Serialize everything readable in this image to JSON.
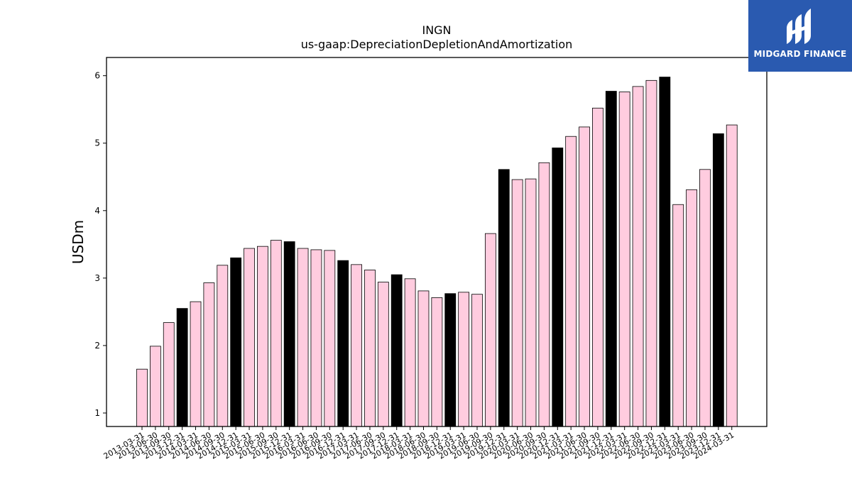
{
  "chart_data": {
    "type": "bar",
    "title": "INGN",
    "subtitle": "us-gaap:DepreciationDepletionAndAmortization",
    "xlabel": "",
    "ylabel": "USDm",
    "ylim": [
      0.8,
      6.27
    ],
    "yticks": [
      1,
      2,
      3,
      4,
      5,
      6
    ],
    "grid": false,
    "colors": {
      "quarter": "#ffccdf",
      "year_end": "#000000",
      "edge": "#000000"
    },
    "categories": [
      "2013-03-31",
      "2013-06-30",
      "2013-09-30",
      "2013-12-31",
      "2014-03-31",
      "2014-06-30",
      "2014-09-30",
      "2014-12-31",
      "2015-03-31",
      "2015-06-30",
      "2015-09-30",
      "2015-12-31",
      "2016-03-31",
      "2016-06-30",
      "2016-09-30",
      "2016-12-31",
      "2017-03-31",
      "2017-06-30",
      "2017-09-30",
      "2017-12-31",
      "2018-03-31",
      "2018-06-30",
      "2018-09-30",
      "2018-12-31",
      "2019-03-31",
      "2019-06-30",
      "2019-09-30",
      "2019-12-31",
      "2020-03-31",
      "2020-06-30",
      "2020-09-30",
      "2020-12-31",
      "2021-03-31",
      "2021-06-30",
      "2021-09-30",
      "2021-12-31",
      "2022-03-31",
      "2022-06-30",
      "2022-09-30",
      "2022-12-31",
      "2023-03-31",
      "2023-06-30",
      "2023-09-30",
      "2023-12-31",
      "2024-03-31"
    ],
    "values": [
      1.65,
      1.99,
      2.34,
      2.55,
      2.65,
      2.93,
      3.19,
      3.3,
      3.44,
      3.47,
      3.56,
      3.54,
      3.44,
      3.42,
      3.41,
      3.26,
      3.2,
      3.12,
      2.94,
      3.05,
      2.99,
      2.81,
      2.71,
      2.77,
      2.79,
      2.76,
      3.66,
      4.61,
      4.46,
      4.47,
      4.71,
      4.93,
      5.1,
      5.24,
      5.52,
      5.77,
      5.76,
      5.84,
      5.93,
      5.98,
      4.09,
      4.31,
      4.61,
      5.14,
      5.27
    ],
    "highlight": [
      false,
      false,
      false,
      true,
      false,
      false,
      false,
      true,
      false,
      false,
      false,
      true,
      false,
      false,
      false,
      true,
      false,
      false,
      false,
      true,
      false,
      false,
      false,
      true,
      false,
      false,
      false,
      true,
      false,
      false,
      false,
      true,
      false,
      false,
      false,
      true,
      false,
      false,
      false,
      true,
      false,
      false,
      false,
      true,
      false
    ]
  },
  "logo": {
    "text": "MIDGARD FINANCE",
    "icon": "midgard-logo-icon"
  }
}
